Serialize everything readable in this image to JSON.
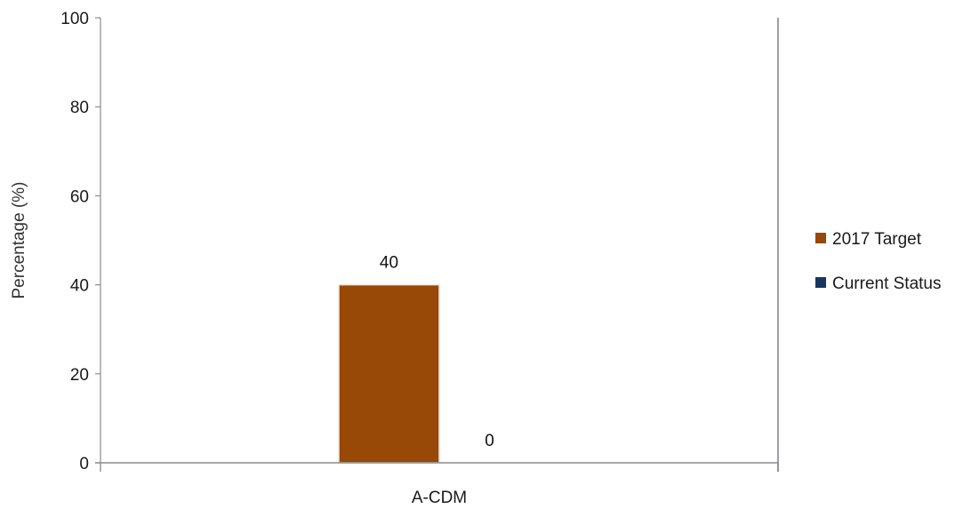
{
  "chart_data": {
    "type": "bar",
    "title": "",
    "xlabel": "",
    "ylabel": "Percentage (%)",
    "categories": [
      "A-CDM"
    ],
    "ylim": [
      0,
      100
    ],
    "yticks": [
      0,
      20,
      40,
      60,
      80,
      100
    ],
    "grid": false,
    "legend_position": "right",
    "series": [
      {
        "name": "2017 Target",
        "values": [
          40
        ],
        "color": "#984807"
      },
      {
        "name": "Current Status",
        "values": [
          0
        ],
        "color": "#17375E"
      }
    ]
  }
}
